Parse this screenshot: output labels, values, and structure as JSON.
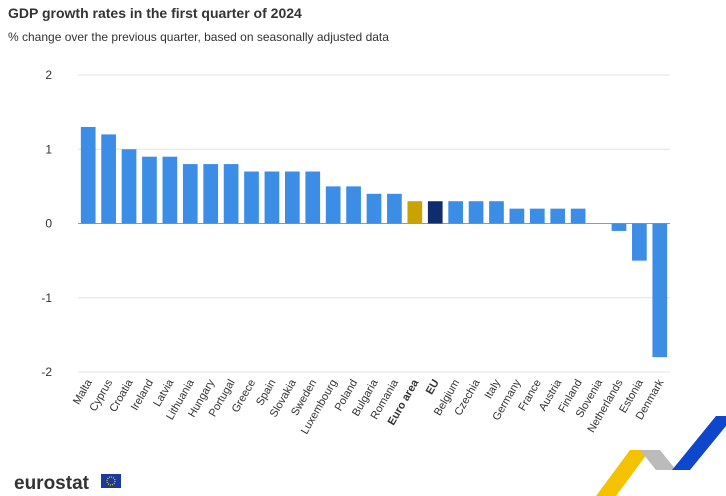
{
  "chart_data": {
    "type": "bar",
    "title": "GDP growth rates in the first quarter of 2024",
    "subtitle": "% change over the previous quarter, based on seasonally adjusted data",
    "categories": [
      "Malta",
      "Cyprus",
      "Croatia",
      "Ireland",
      "Latvia",
      "Lithuania",
      "Hungary",
      "Portugal",
      "Greece",
      "Spain",
      "Slovakia",
      "Sweden",
      "Luxembourg",
      "Poland",
      "Bulgaria",
      "Romania",
      "Euro area",
      "EU",
      "Belgium",
      "Czechia",
      "Italy",
      "Germany",
      "France",
      "Austria",
      "Finland",
      "Slovenia",
      "Netherlands",
      "Estonia",
      "Denmark"
    ],
    "values": [
      1.3,
      1.2,
      1.0,
      0.9,
      0.9,
      0.8,
      0.8,
      0.8,
      0.7,
      0.7,
      0.7,
      0.7,
      0.5,
      0.5,
      0.4,
      0.4,
      0.3,
      0.3,
      0.3,
      0.3,
      0.3,
      0.2,
      0.2,
      0.2,
      0.2,
      0.0,
      -0.1,
      -0.5,
      -1.8
    ],
    "color": "#3c8de6",
    "colors": [
      "#3c8de6",
      "#3c8de6",
      "#3c8de6",
      "#3c8de6",
      "#3c8de6",
      "#3c8de6",
      "#3c8de6",
      "#3c8de6",
      "#3c8de6",
      "#3c8de6",
      "#3c8de6",
      "#3c8de6",
      "#3c8de6",
      "#3c8de6",
      "#3c8de6",
      "#3c8de6",
      "#c9a300",
      "#0e2c6e",
      "#3c8de6",
      "#3c8de6",
      "#3c8de6",
      "#3c8de6",
      "#3c8de6",
      "#3c8de6",
      "#3c8de6",
      "#3c8de6",
      "#3c8de6",
      "#3c8de6",
      "#3c8de6"
    ],
    "ylim": [
      -2,
      2
    ],
    "yticks": [
      -2,
      -1,
      0,
      1,
      2
    ],
    "grid": true,
    "logo": "eurostat"
  }
}
